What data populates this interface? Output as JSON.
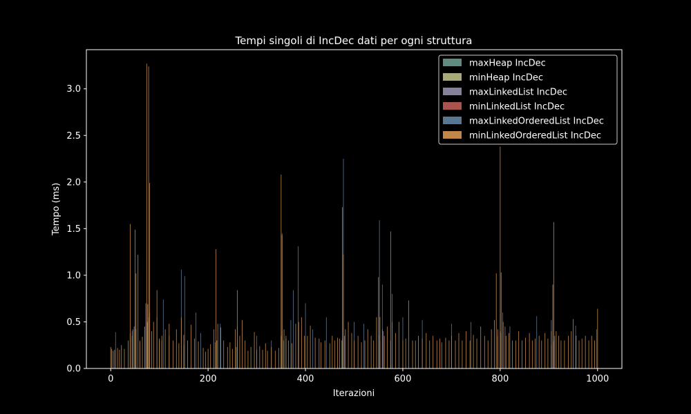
{
  "chart_data": {
    "type": "bar",
    "title": "Tempi singoli di IncDec dati per ogni struttura",
    "xlabel": "Iterazioni",
    "ylabel": "Tempo (ms)",
    "xlim": [
      -50,
      1050
    ],
    "ylim": [
      0,
      3.42
    ],
    "xticks": [
      0,
      200,
      400,
      600,
      800,
      1000
    ],
    "yticks": [
      0.0,
      0.5,
      1.0,
      1.5,
      2.0,
      2.5,
      3.0
    ],
    "xtick_labels": [
      "0",
      "200",
      "400",
      "600",
      "800",
      "1000"
    ],
    "ytick_labels": [
      "0.0",
      "0.5",
      "1.0",
      "1.5",
      "2.0",
      "2.5",
      "3.0"
    ],
    "legend_position": "top-right",
    "grid": false,
    "series": [
      {
        "name": "maxHeap IncDec",
        "color": "#5f8b80",
        "points": [
          [
            45,
            0.42
          ],
          [
            50,
            0.46
          ],
          [
            78,
            0.55
          ],
          [
            105,
            0.3
          ],
          [
            150,
            0.25
          ],
          [
            258,
            0.23
          ],
          [
            355,
            0.3
          ],
          [
            478,
            0.28
          ],
          [
            552,
            0.35
          ],
          [
            800,
            0.4
          ],
          [
            910,
            0.3
          ]
        ]
      },
      {
        "name": "minHeap IncDec",
        "color": "#a9a97a",
        "points": [
          [
            40,
            0.38
          ],
          [
            52,
            0.42
          ],
          [
            75,
            0.5
          ],
          [
            100,
            0.32
          ],
          [
            218,
            0.3
          ],
          [
            350,
            0.35
          ],
          [
            475,
            0.3
          ],
          [
            575,
            0.3
          ],
          [
            795,
            0.35
          ],
          [
            905,
            0.25
          ]
        ]
      },
      {
        "name": "maxLinkedList IncDec",
        "color": "#86819a",
        "points": [
          [
            48,
            0.45
          ],
          [
            72,
            0.7
          ],
          [
            120,
            0.35
          ],
          [
            260,
            0.3
          ],
          [
            360,
            0.32
          ],
          [
            480,
            0.35
          ],
          [
            560,
            0.4
          ],
          [
            810,
            0.45
          ],
          [
            912,
            0.35
          ]
        ]
      },
      {
        "name": "minLinkedList IncDec",
        "color": "#a9544e",
        "points": [
          [
            44,
            0.4
          ],
          [
            80,
            0.6
          ],
          [
            215,
            0.28
          ],
          [
            352,
            0.4
          ],
          [
            476,
            0.32
          ],
          [
            553,
            0.3
          ],
          [
            802,
            0.38
          ],
          [
            908,
            0.28
          ]
        ]
      },
      {
        "name": "maxLinkedOrderedList IncDec",
        "color": "#5a7792",
        "points": [
          [
            10,
            0.39
          ],
          [
            60,
            0.28
          ],
          [
            95,
            0.55
          ],
          [
            108,
            0.74
          ],
          [
            145,
            1.06
          ],
          [
            152,
            0.99
          ],
          [
            175,
            0.6
          ],
          [
            185,
            0.38
          ],
          [
            225,
            0.48
          ],
          [
            260,
            0.45
          ],
          [
            300,
            0.35
          ],
          [
            330,
            0.3
          ],
          [
            352,
            1.45
          ],
          [
            370,
            0.52
          ],
          [
            375,
            0.84
          ],
          [
            385,
            1.31
          ],
          [
            400,
            0.7
          ],
          [
            415,
            0.42
          ],
          [
            443,
            0.55
          ],
          [
            478,
            2.25
          ],
          [
            500,
            0.5
          ],
          [
            520,
            0.48
          ],
          [
            552,
            1.59
          ],
          [
            558,
            0.9
          ],
          [
            578,
            0.8
          ],
          [
            600,
            0.55
          ],
          [
            640,
            0.52
          ],
          [
            700,
            0.48
          ],
          [
            740,
            0.5
          ],
          [
            805,
            0.6
          ],
          [
            820,
            0.45
          ],
          [
            875,
            0.56
          ],
          [
            905,
            0.52
          ],
          [
            955,
            0.46
          ],
          [
            998,
            0.42
          ]
        ]
      },
      {
        "name": "minLinkedOrderedList IncDec",
        "color": "#c08748",
        "points": [
          [
            0,
            0.23
          ],
          [
            2,
            0.21
          ],
          [
            5,
            0.19
          ],
          [
            8,
            0.2
          ],
          [
            14,
            0.22
          ],
          [
            18,
            0.2
          ],
          [
            22,
            0.25
          ],
          [
            28,
            0.21
          ],
          [
            36,
            0.3
          ],
          [
            40,
            1.55
          ],
          [
            44,
            0.35
          ],
          [
            48,
            0.42
          ],
          [
            50,
            1.49
          ],
          [
            52,
            1.02
          ],
          [
            56,
            1.22
          ],
          [
            60,
            0.3
          ],
          [
            65,
            0.34
          ],
          [
            70,
            0.45
          ],
          [
            74,
            3.27
          ],
          [
            76,
            0.69
          ],
          [
            78,
            3.24
          ],
          [
            80,
            1.99
          ],
          [
            84,
            0.4
          ],
          [
            88,
            0.5
          ],
          [
            95,
            0.84
          ],
          [
            100,
            0.3
          ],
          [
            105,
            0.35
          ],
          [
            112,
            0.42
          ],
          [
            120,
            0.48
          ],
          [
            128,
            0.3
          ],
          [
            135,
            0.42
          ],
          [
            140,
            0.27
          ],
          [
            145,
            0.55
          ],
          [
            150,
            0.36
          ],
          [
            158,
            0.3
          ],
          [
            165,
            0.47
          ],
          [
            172,
            0.32
          ],
          [
            180,
            0.29
          ],
          [
            190,
            0.22
          ],
          [
            195,
            0.18
          ],
          [
            200,
            0.21
          ],
          [
            205,
            0.26
          ],
          [
            212,
            0.42
          ],
          [
            216,
            1.28
          ],
          [
            220,
            0.48
          ],
          [
            226,
            0.44
          ],
          [
            232,
            0.3
          ],
          [
            240,
            0.23
          ],
          [
            245,
            0.28
          ],
          [
            250,
            0.21
          ],
          [
            256,
            0.42
          ],
          [
            260,
            0.84
          ],
          [
            265,
            0.35
          ],
          [
            270,
            0.52
          ],
          [
            276,
            0.3
          ],
          [
            282,
            0.19
          ],
          [
            288,
            0.23
          ],
          [
            295,
            0.39
          ],
          [
            300,
            0.2
          ],
          [
            306,
            0.24
          ],
          [
            312,
            0.2
          ],
          [
            318,
            0.27
          ],
          [
            322,
            0.19
          ],
          [
            330,
            0.23
          ],
          [
            338,
            0.19
          ],
          [
            345,
            0.22
          ],
          [
            350,
            2.08
          ],
          [
            352,
            1.43
          ],
          [
            356,
            0.42
          ],
          [
            360,
            0.35
          ],
          [
            365,
            0.3
          ],
          [
            372,
            0.27
          ],
          [
            380,
            0.48
          ],
          [
            386,
            0.5
          ],
          [
            392,
            0.55
          ],
          [
            398,
            0.35
          ],
          [
            404,
            0.35
          ],
          [
            410,
            0.46
          ],
          [
            420,
            0.33
          ],
          [
            428,
            0.32
          ],
          [
            432,
            0.28
          ],
          [
            440,
            0.3
          ],
          [
            450,
            0.27
          ],
          [
            455,
            0.35
          ],
          [
            460,
            0.3
          ],
          [
            466,
            0.33
          ],
          [
            470,
            0.32
          ],
          [
            476,
            1.73
          ],
          [
            478,
            1.22
          ],
          [
            482,
            0.42
          ],
          [
            488,
            0.5
          ],
          [
            495,
            0.38
          ],
          [
            500,
            0.3
          ],
          [
            508,
            0.35
          ],
          [
            515,
            0.28
          ],
          [
            522,
            0.3
          ],
          [
            528,
            0.42
          ],
          [
            535,
            0.35
          ],
          [
            540,
            0.3
          ],
          [
            546,
            0.55
          ],
          [
            550,
            0.98
          ],
          [
            553,
            0.55
          ],
          [
            558,
            0.42
          ],
          [
            562,
            0.35
          ],
          [
            568,
            0.45
          ],
          [
            575,
            1.47
          ],
          [
            578,
            0.5
          ],
          [
            585,
            0.38
          ],
          [
            592,
            0.5
          ],
          [
            600,
            0.3
          ],
          [
            606,
            0.32
          ],
          [
            612,
            0.73
          ],
          [
            620,
            0.3
          ],
          [
            626,
            0.3
          ],
          [
            632,
            0.35
          ],
          [
            640,
            0.32
          ],
          [
            648,
            0.38
          ],
          [
            655,
            0.3
          ],
          [
            662,
            0.35
          ],
          [
            670,
            0.3
          ],
          [
            676,
            0.32
          ],
          [
            680,
            0.28
          ],
          [
            688,
            0.33
          ],
          [
            695,
            0.3
          ],
          [
            700,
            0.35
          ],
          [
            708,
            0.3
          ],
          [
            715,
            0.38
          ],
          [
            722,
            0.3
          ],
          [
            730,
            0.4
          ],
          [
            738,
            0.3
          ],
          [
            745,
            0.36
          ],
          [
            752,
            0.32
          ],
          [
            760,
            0.45
          ],
          [
            768,
            0.35
          ],
          [
            775,
            0.3
          ],
          [
            782,
            0.42
          ],
          [
            788,
            0.52
          ],
          [
            792,
            1.02
          ],
          [
            795,
            0.42
          ],
          [
            800,
            2.38
          ],
          [
            802,
            1.03
          ],
          [
            806,
            0.5
          ],
          [
            812,
            0.35
          ],
          [
            818,
            0.38
          ],
          [
            825,
            0.3
          ],
          [
            832,
            0.3
          ],
          [
            838,
            0.4
          ],
          [
            845,
            0.3
          ],
          [
            852,
            0.33
          ],
          [
            860,
            0.38
          ],
          [
            866,
            0.3
          ],
          [
            872,
            0.32
          ],
          [
            880,
            0.35
          ],
          [
            885,
            0.3
          ],
          [
            892,
            0.38
          ],
          [
            898,
            0.32
          ],
          [
            905,
            0.4
          ],
          [
            908,
            0.9
          ],
          [
            910,
            1.57
          ],
          [
            915,
            0.4
          ],
          [
            920,
            0.35
          ],
          [
            925,
            0.3
          ],
          [
            932,
            0.3
          ],
          [
            940,
            0.35
          ],
          [
            946,
            0.4
          ],
          [
            950,
            0.53
          ],
          [
            956,
            0.35
          ],
          [
            962,
            0.3
          ],
          [
            968,
            0.32
          ],
          [
            975,
            0.35
          ],
          [
            982,
            0.3
          ],
          [
            988,
            0.35
          ],
          [
            994,
            0.3
          ],
          [
            1000,
            0.64
          ]
        ]
      }
    ]
  }
}
